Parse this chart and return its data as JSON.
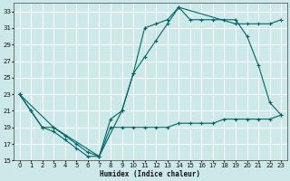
{
  "xlabel": "Humidex (Indice chaleur)",
  "bg_color": "#cce8e8",
  "grid_color": "#ffffff",
  "line_color": "#006666",
  "xlim": [
    -0.5,
    23.5
  ],
  "ylim": [
    15,
    34
  ],
  "xticks": [
    0,
    1,
    2,
    3,
    4,
    5,
    6,
    7,
    8,
    9,
    10,
    11,
    12,
    13,
    14,
    15,
    16,
    17,
    18,
    19,
    20,
    21,
    22,
    23
  ],
  "yticks": [
    15,
    17,
    19,
    21,
    23,
    25,
    27,
    29,
    31,
    33
  ],
  "line1_x": [
    0,
    1,
    2,
    3,
    4,
    5,
    6,
    7,
    8,
    9,
    10,
    11,
    12,
    13,
    14,
    15,
    16,
    17,
    18,
    19,
    20,
    21,
    22,
    23
  ],
  "line1_y": [
    23,
    21,
    19,
    19,
    18,
    17,
    16,
    15.5,
    20,
    21,
    25.5,
    31,
    31.5,
    32,
    33.5,
    32,
    32,
    32,
    32,
    32,
    30,
    26.5,
    22,
    20.5
  ],
  "line2_x": [
    0,
    1,
    2,
    3,
    4,
    5,
    6,
    7,
    8,
    9,
    10,
    11,
    12,
    13,
    14,
    15,
    16,
    17,
    18,
    19,
    20,
    21,
    22,
    23
  ],
  "line2_y": [
    23,
    21,
    19,
    18.5,
    17.5,
    16.5,
    15.5,
    15.5,
    19,
    19,
    19,
    19,
    19,
    19,
    19.5,
    19.5,
    19.5,
    19.5,
    20,
    20,
    20,
    20,
    20,
    20.5
  ],
  "line3_x": [
    0,
    3,
    7,
    9,
    10,
    11,
    12,
    13,
    14,
    19,
    20,
    21,
    22,
    23
  ],
  "line3_y": [
    23,
    19,
    15.5,
    21,
    25.5,
    27.5,
    29.5,
    31.5,
    33.5,
    31.5,
    31.5,
    31.5,
    31.5,
    32
  ]
}
